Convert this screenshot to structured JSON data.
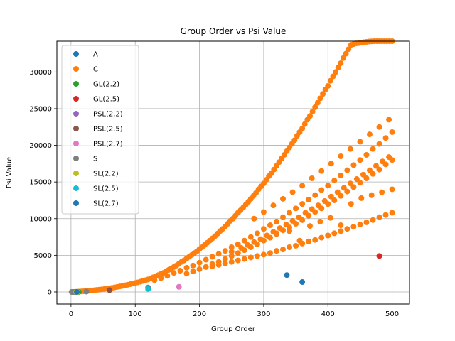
{
  "chart_data": {
    "type": "scatter",
    "title": "Group Order vs Psi Value",
    "xlabel": "Group Order",
    "ylabel": "Psi Value",
    "xlim": [
      -22,
      527
    ],
    "ylim": [
      -1650,
      34200
    ],
    "xticks": [
      0,
      100,
      200,
      300,
      400,
      500
    ],
    "yticks": [
      0,
      5000,
      10000,
      15000,
      20000,
      25000,
      30000
    ],
    "grid": true,
    "legend_position": "upper-left",
    "series": [
      {
        "name": "A",
        "color": "#1f77b4",
        "points": [
          [
            336,
            2300
          ],
          [
            360,
            1350
          ]
        ]
      },
      {
        "name": "C",
        "color": "#ff7f0e",
        "points": [
          [
            4,
            10
          ],
          [
            8,
            25
          ],
          [
            12,
            45
          ],
          [
            16,
            70
          ],
          [
            20,
            95
          ],
          [
            24,
            130
          ],
          [
            28,
            160
          ],
          [
            32,
            190
          ],
          [
            36,
            230
          ],
          [
            40,
            270
          ],
          [
            44,
            310
          ],
          [
            48,
            350
          ],
          [
            52,
            400
          ],
          [
            56,
            450
          ],
          [
            60,
            500
          ],
          [
            64,
            560
          ],
          [
            68,
            620
          ],
          [
            72,
            690
          ],
          [
            76,
            760
          ],
          [
            80,
            830
          ],
          [
            84,
            900
          ],
          [
            88,
            980
          ],
          [
            92,
            1060
          ],
          [
            96,
            1140
          ],
          [
            100,
            1220
          ],
          [
            104,
            1300
          ],
          [
            108,
            1400
          ],
          [
            112,
            1500
          ],
          [
            116,
            1600
          ],
          [
            120,
            1700
          ],
          [
            124,
            1850
          ],
          [
            128,
            2000
          ],
          [
            132,
            2150
          ],
          [
            136,
            2300
          ],
          [
            140,
            2450
          ],
          [
            144,
            2600
          ],
          [
            148,
            2800
          ],
          [
            152,
            3000
          ],
          [
            156,
            3200
          ],
          [
            160,
            3400
          ],
          [
            164,
            3600
          ],
          [
            168,
            3850
          ],
          [
            172,
            4100
          ],
          [
            176,
            4300
          ],
          [
            180,
            4550
          ],
          [
            184,
            4800
          ],
          [
            188,
            5050
          ],
          [
            192,
            5300
          ],
          [
            196,
            5550
          ],
          [
            200,
            5850
          ],
          [
            204,
            6100
          ],
          [
            208,
            6400
          ],
          [
            212,
            6700
          ],
          [
            216,
            7000
          ],
          [
            220,
            7300
          ],
          [
            224,
            7600
          ],
          [
            228,
            7950
          ],
          [
            232,
            8300
          ],
          [
            236,
            8600
          ],
          [
            240,
            8900
          ],
          [
            244,
            9300
          ],
          [
            248,
            9700
          ],
          [
            252,
            10000
          ],
          [
            256,
            10400
          ],
          [
            260,
            10800
          ],
          [
            264,
            11150
          ],
          [
            268,
            11500
          ],
          [
            272,
            11900
          ],
          [
            276,
            12300
          ],
          [
            280,
            12700
          ],
          [
            284,
            13100
          ],
          [
            288,
            13500
          ],
          [
            292,
            14000
          ],
          [
            296,
            14400
          ],
          [
            300,
            14800
          ],
          [
            304,
            15300
          ],
          [
            308,
            15800
          ],
          [
            312,
            16200
          ],
          [
            316,
            16700
          ],
          [
            320,
            17200
          ],
          [
            324,
            17700
          ],
          [
            328,
            18200
          ],
          [
            332,
            18700
          ],
          [
            336,
            19200
          ],
          [
            340,
            19700
          ],
          [
            344,
            20200
          ],
          [
            348,
            20700
          ],
          [
            352,
            21300
          ],
          [
            356,
            21800
          ],
          [
            360,
            22300
          ],
          [
            364,
            22900
          ],
          [
            368,
            23500
          ],
          [
            372,
            24000
          ],
          [
            376,
            24600
          ],
          [
            380,
            25200
          ],
          [
            384,
            25800
          ],
          [
            388,
            26400
          ],
          [
            392,
            27000
          ],
          [
            396,
            27600
          ],
          [
            400,
            28100
          ],
          [
            404,
            28800
          ],
          [
            408,
            29400
          ],
          [
            412,
            30000
          ],
          [
            416,
            30600
          ],
          [
            420,
            31200
          ],
          [
            424,
            31900
          ],
          [
            428,
            32500
          ],
          [
            432,
            33100
          ],
          [
            436,
            33700
          ],
          [
            440,
            33800
          ],
          [
            444,
            33900
          ],
          [
            448,
            33950
          ],
          [
            452,
            34000
          ],
          [
            456,
            34050
          ],
          [
            460,
            34100
          ],
          [
            464,
            34150
          ],
          [
            468,
            34180
          ],
          [
            472,
            34200
          ],
          [
            476,
            34200
          ],
          [
            480,
            34200
          ],
          [
            484,
            34200
          ],
          [
            488,
            34200
          ],
          [
            492,
            34200
          ],
          [
            496,
            34200
          ],
          [
            500,
            34200
          ],
          [
            130,
            1600
          ],
          [
            140,
            1900
          ],
          [
            150,
            2200
          ],
          [
            160,
            2600
          ],
          [
            170,
            2900
          ],
          [
            180,
            3300
          ],
          [
            190,
            3600
          ],
          [
            200,
            4000
          ],
          [
            210,
            4400
          ],
          [
            220,
            4800
          ],
          [
            230,
            5200
          ],
          [
            240,
            5600
          ],
          [
            250,
            6100
          ],
          [
            260,
            6500
          ],
          [
            270,
            7000
          ],
          [
            280,
            7500
          ],
          [
            290,
            8000
          ],
          [
            300,
            8600
          ],
          [
            310,
            9100
          ],
          [
            320,
            9600
          ],
          [
            330,
            10200
          ],
          [
            340,
            10800
          ],
          [
            350,
            11400
          ],
          [
            360,
            12000
          ],
          [
            370,
            12600
          ],
          [
            380,
            13200
          ],
          [
            390,
            13900
          ],
          [
            400,
            14500
          ],
          [
            410,
            15200
          ],
          [
            420,
            15900
          ],
          [
            430,
            16600
          ],
          [
            440,
            17300
          ],
          [
            450,
            18000
          ],
          [
            460,
            18700
          ],
          [
            470,
            19500
          ],
          [
            480,
            20200
          ],
          [
            490,
            21000
          ],
          [
            500,
            21800
          ],
          [
            180,
            2500
          ],
          [
            190,
            2800
          ],
          [
            200,
            3100
          ],
          [
            210,
            3400
          ],
          [
            220,
            3800
          ],
          [
            230,
            4100
          ],
          [
            240,
            4500
          ],
          [
            250,
            4900
          ],
          [
            260,
            5300
          ],
          [
            270,
            5700
          ],
          [
            280,
            6100
          ],
          [
            290,
            6500
          ],
          [
            300,
            7000
          ],
          [
            310,
            7400
          ],
          [
            320,
            7900
          ],
          [
            330,
            8400
          ],
          [
            340,
            8800
          ],
          [
            350,
            9300
          ],
          [
            360,
            9800
          ],
          [
            370,
            10400
          ],
          [
            380,
            10900
          ],
          [
            390,
            11400
          ],
          [
            400,
            12000
          ],
          [
            410,
            12500
          ],
          [
            420,
            13100
          ],
          [
            430,
            13700
          ],
          [
            440,
            14300
          ],
          [
            450,
            14900
          ],
          [
            460,
            15500
          ],
          [
            470,
            16100
          ],
          [
            480,
            16700
          ],
          [
            490,
            17400
          ],
          [
            500,
            18000
          ],
          [
            220,
            3500
          ],
          [
            230,
            3700
          ],
          [
            240,
            3900
          ],
          [
            250,
            4100
          ],
          [
            260,
            4300
          ],
          [
            270,
            4500
          ],
          [
            280,
            4700
          ],
          [
            290,
            4900
          ],
          [
            300,
            5100
          ],
          [
            310,
            5300
          ],
          [
            320,
            5600
          ],
          [
            330,
            5800
          ],
          [
            340,
            6100
          ],
          [
            350,
            6300
          ],
          [
            360,
            6600
          ],
          [
            370,
            6900
          ],
          [
            380,
            7100
          ],
          [
            390,
            7400
          ],
          [
            400,
            7700
          ],
          [
            410,
            8000
          ],
          [
            420,
            8300
          ],
          [
            430,
            8600
          ],
          [
            440,
            8900
          ],
          [
            450,
            9200
          ],
          [
            460,
            9500
          ],
          [
            470,
            9800
          ],
          [
            480,
            10200
          ],
          [
            490,
            10500
          ],
          [
            500,
            10800
          ],
          [
            250,
            5500
          ],
          [
            265,
            6000
          ],
          [
            275,
            6400
          ],
          [
            285,
            6800
          ],
          [
            295,
            7200
          ],
          [
            305,
            7700
          ],
          [
            315,
            8200
          ],
          [
            325,
            8700
          ],
          [
            335,
            9200
          ],
          [
            345,
            9700
          ],
          [
            355,
            10200
          ],
          [
            365,
            10800
          ],
          [
            375,
            11300
          ],
          [
            385,
            11800
          ],
          [
            395,
            12400
          ],
          [
            405,
            13000
          ],
          [
            415,
            13600
          ],
          [
            425,
            14200
          ],
          [
            435,
            14800
          ],
          [
            445,
            15400
          ],
          [
            455,
            16000
          ],
          [
            465,
            16600
          ],
          [
            475,
            17200
          ],
          [
            485,
            17800
          ],
          [
            495,
            18400
          ],
          [
            285,
            10000
          ],
          [
            300,
            10900
          ],
          [
            315,
            11800
          ],
          [
            330,
            12700
          ],
          [
            345,
            13600
          ],
          [
            360,
            14500
          ],
          [
            375,
            15500
          ],
          [
            390,
            16500
          ],
          [
            405,
            17500
          ],
          [
            420,
            18500
          ],
          [
            435,
            19500
          ],
          [
            450,
            20500
          ],
          [
            465,
            21500
          ],
          [
            480,
            22500
          ],
          [
            495,
            23500
          ],
          [
            320,
            8000
          ],
          [
            340,
            8300
          ],
          [
            356,
            7000
          ],
          [
            372,
            9000
          ],
          [
            388,
            9600
          ],
          [
            404,
            10100
          ],
          [
            420,
            9100
          ],
          [
            436,
            12000
          ],
          [
            452,
            12800
          ],
          [
            468,
            13200
          ],
          [
            484,
            13600
          ],
          [
            500,
            14000
          ]
        ]
      },
      {
        "name": "GL(2.2)",
        "color": "#2ca02c",
        "points": [
          [
            6,
            0
          ],
          [
            12,
            5
          ]
        ]
      },
      {
        "name": "GL(2.5)",
        "color": "#d62728",
        "points": [
          [
            480,
            4900
          ]
        ]
      },
      {
        "name": "PSL(2.2)",
        "color": "#9467bd",
        "points": [
          [
            3,
            0
          ],
          [
            6,
            2
          ]
        ]
      },
      {
        "name": "PSL(2.5)",
        "color": "#8c564b",
        "points": [
          [
            60,
            250
          ]
        ]
      },
      {
        "name": "PSL(2.7)",
        "color": "#e377c2",
        "points": [
          [
            168,
            700
          ]
        ]
      },
      {
        "name": "S",
        "color": "#7f7f7f",
        "points": [
          [
            1,
            0
          ],
          [
            2,
            0
          ],
          [
            6,
            0
          ],
          [
            24,
            50
          ],
          [
            120,
            600
          ]
        ]
      },
      {
        "name": "SL(2.2)",
        "color": "#bcbd22",
        "points": [
          [
            8,
            0
          ],
          [
            10,
            5
          ]
        ]
      },
      {
        "name": "SL(2.5)",
        "color": "#17becf",
        "points": [
          [
            120,
            400
          ]
        ]
      },
      {
        "name": "SL(2.7)",
        "color": "#1f77b4",
        "points": [
          [
            9,
            5
          ]
        ]
      }
    ]
  }
}
